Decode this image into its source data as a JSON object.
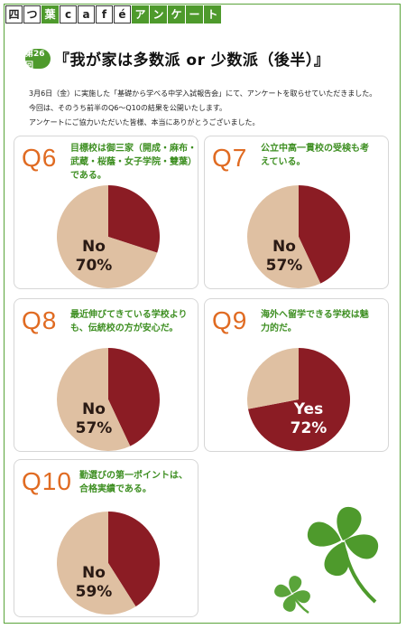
{
  "brand": [
    "四",
    "つ",
    "葉",
    "c",
    "a",
    "f",
    "é",
    "ア",
    "ン",
    "ケ",
    "ー",
    "ト"
  ],
  "header": {
    "badge": "第26回",
    "title": "『我が家は多数派 or 少数派（後半）』"
  },
  "intro": [
    "3月6日（金）に実施した「基礎から学べる中学入試報告会」にて、アンケートを取らせていただきました。",
    "今回は、そのうち前半のQ6〜Q10の結果を公開いたします。",
    "アンケートにご協力いただいた皆様、本当にありがとうございました。"
  ],
  "colors": {
    "yes": "#8b1c24",
    "no": "#dfc0a2",
    "accent": "#e06b22",
    "green": "#3e8f22"
  },
  "chart_data": [
    {
      "type": "pie",
      "title": "Q6",
      "question": [
        "目標校は御三家（開成・麻布・",
        "武蔵・桜蔭・女子学院・雙葉）",
        "である。"
      ],
      "slices": [
        {
          "name": "No",
          "value": 70
        },
        {
          "name": "Yes",
          "value": 30
        }
      ],
      "label": {
        "name": "No",
        "value": "70%"
      }
    },
    {
      "type": "pie",
      "title": "Q7",
      "question": [
        "公立中高一貫校の受検も考",
        "えている。"
      ],
      "slices": [
        {
          "name": "No",
          "value": 57
        },
        {
          "name": "Yes",
          "value": 43
        }
      ],
      "label": {
        "name": "No",
        "value": "57%"
      }
    },
    {
      "type": "pie",
      "title": "Q8",
      "question": [
        "最近伸びてきている学校より",
        "も、伝統校の方が安心だ。"
      ],
      "slices": [
        {
          "name": "No",
          "value": 57
        },
        {
          "name": "Yes",
          "value": 43
        }
      ],
      "label": {
        "name": "No",
        "value": "57%"
      }
    },
    {
      "type": "pie",
      "title": "Q9",
      "question": [
        "海外へ留学できる学校は魅",
        "力的だ。"
      ],
      "slices": [
        {
          "name": "No",
          "value": 28
        },
        {
          "name": "Yes",
          "value": 72
        }
      ],
      "label": {
        "name": "Yes",
        "value": "72%"
      }
    },
    {
      "type": "pie",
      "title": "Q10",
      "question": [
        "勤選びの第一ポイントは、",
        "合格実績である。"
      ],
      "slices": [
        {
          "name": "No",
          "value": 59
        },
        {
          "name": "Yes",
          "value": 41
        }
      ],
      "label": {
        "name": "No",
        "value": "59%"
      }
    }
  ]
}
